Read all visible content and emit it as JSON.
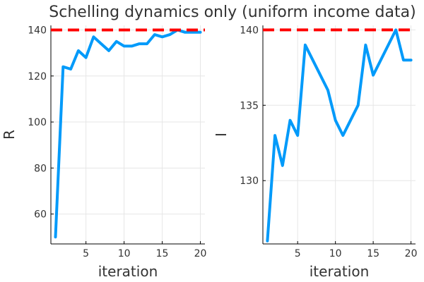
{
  "title": "Schelling dynamics only (uniform income data)",
  "colors": {
    "series": "#009AFA",
    "reference": "#FF0000",
    "grid": "#e6e6e6",
    "axis": "#000000",
    "text": "#333333"
  },
  "chart_data": [
    {
      "type": "line",
      "xlabel": "iteration",
      "ylabel": "R",
      "xlim": [
        0.4,
        20.6
      ],
      "ylim": [
        47,
        142
      ],
      "xticks": [
        5,
        10,
        15,
        20
      ],
      "yticks": [
        60,
        80,
        100,
        120,
        140
      ],
      "grid": true,
      "series": [
        {
          "x": [
            1,
            2,
            3,
            4,
            5,
            6,
            7,
            8,
            9,
            10,
            11,
            12,
            13,
            14,
            15,
            16,
            17,
            18,
            19,
            20
          ],
          "y": [
            50,
            124,
            123,
            131,
            128,
            137,
            134,
            131,
            135,
            133,
            133,
            134,
            134,
            138,
            137,
            138,
            140,
            139,
            139,
            139
          ]
        }
      ],
      "reference_line": {
        "y": 140,
        "style": "dashed"
      }
    },
    {
      "type": "line",
      "xlabel": "iteration",
      "ylabel": "I",
      "xlim": [
        0.4,
        20.6
      ],
      "ylim": [
        125.8,
        140.3
      ],
      "xticks": [
        5,
        10,
        15,
        20
      ],
      "yticks": [
        130,
        135,
        140
      ],
      "grid": true,
      "series": [
        {
          "x": [
            1,
            2,
            3,
            4,
            5,
            6,
            7,
            8,
            9,
            10,
            11,
            12,
            13,
            14,
            15,
            16,
            17,
            18,
            19,
            20
          ],
          "y": [
            126,
            133,
            131,
            134,
            133,
            139,
            null,
            null,
            136,
            134,
            133,
            134,
            135,
            139,
            137,
            null,
            null,
            140,
            138,
            138
          ]
        }
      ],
      "reference_line": {
        "y": 140,
        "style": "dashed"
      }
    }
  ]
}
